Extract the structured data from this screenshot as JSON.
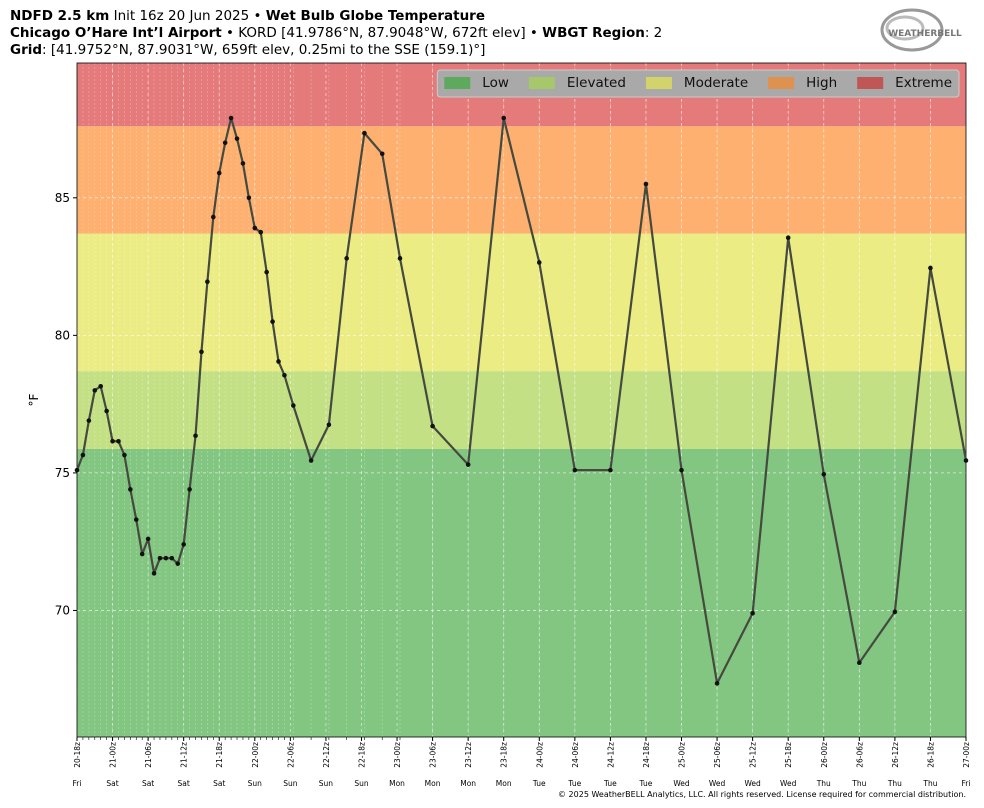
{
  "chart_data": {
    "type": "line",
    "title_lines": [
      [
        {
          "text": "NDFD 2.5 km",
          "bold": true
        },
        {
          "text": " Init 16z 20 Jun 2025 • ",
          "bold": false
        },
        {
          "text": "Wet Bulb Globe Temperature",
          "bold": true
        }
      ],
      [
        {
          "text": "Chicago O’Hare Int’l Airport",
          "bold": true
        },
        {
          "text": " • KORD [41.9786°N, 87.9048°W, 672ft elev] • ",
          "bold": false
        },
        {
          "text": "WBGT Region",
          "bold": true
        },
        {
          "text": ": 2",
          "bold": false
        }
      ],
      [
        {
          "text": "Grid",
          "bold": true
        },
        {
          "text": ": [41.9752°N, 87.9031°W, 659ft elev, 0.25mi to the SSE (159.1)°]",
          "bold": false
        }
      ]
    ],
    "logo": "WEATHERBELL",
    "copyright": "© 2025 WeatherBELL Analytics, LLC. All rights reserved. License required for commercial distribution.",
    "y_label": "°F",
    "ylim": [
      65.4,
      89.9
    ],
    "yticks": [
      70,
      75,
      80,
      85
    ],
    "xlim": [
      0,
      150
    ],
    "xticks": [
      {
        "value": 0,
        "label": "20-18z",
        "day": "Fri"
      },
      {
        "value": 6,
        "label": "21-00z",
        "day": "Sat"
      },
      {
        "value": 12,
        "label": "21-06z",
        "day": "Sat"
      },
      {
        "value": 18,
        "label": "21-12z",
        "day": "Sat"
      },
      {
        "value": 24,
        "label": "21-18z",
        "day": "Sat"
      },
      {
        "value": 30,
        "label": "22-00z",
        "day": "Sun"
      },
      {
        "value": 36,
        "label": "22-06z",
        "day": "Sun"
      },
      {
        "value": 42,
        "label": "22-12z",
        "day": "Sun"
      },
      {
        "value": 48,
        "label": "22-18z",
        "day": "Sun"
      },
      {
        "value": 54,
        "label": "23-00z",
        "day": "Mon"
      },
      {
        "value": 60,
        "label": "23-06z",
        "day": "Mon"
      },
      {
        "value": 66,
        "label": "23-12z",
        "day": "Mon"
      },
      {
        "value": 72,
        "label": "23-18z",
        "day": "Mon"
      },
      {
        "value": 78,
        "label": "24-00z",
        "day": "Tue"
      },
      {
        "value": 84,
        "label": "24-06z",
        "day": "Tue"
      },
      {
        "value": 90,
        "label": "24-12z",
        "day": "Tue"
      },
      {
        "value": 96,
        "label": "24-18z",
        "day": "Tue"
      },
      {
        "value": 102,
        "label": "25-00z",
        "day": "Wed"
      },
      {
        "value": 108,
        "label": "25-06z",
        "day": "Wed"
      },
      {
        "value": 114,
        "label": "25-12z",
        "day": "Wed"
      },
      {
        "value": 120,
        "label": "25-18z",
        "day": "Wed"
      },
      {
        "value": 126,
        "label": "26-00z",
        "day": "Thu"
      },
      {
        "value": 132,
        "label": "26-06z",
        "day": "Thu"
      },
      {
        "value": 138,
        "label": "26-12z",
        "day": "Thu"
      },
      {
        "value": 144,
        "label": "26-18z",
        "day": "Thu"
      },
      {
        "value": 150,
        "label": "27-00z",
        "day": "Fri"
      }
    ],
    "grid": true,
    "legend": "upper right",
    "bands": [
      {
        "name": "Low",
        "min": 65.4,
        "max": 75.87,
        "color": "#82c682",
        "legend_color": "#5ea95e"
      },
      {
        "name": "Elevated",
        "min": 75.87,
        "max": 78.7,
        "color": "#c4e085",
        "legend_color": "#a7c86a"
      },
      {
        "name": "Moderate",
        "min": 78.7,
        "max": 83.7,
        "color": "#ecec85",
        "legend_color": "#d2d36b"
      },
      {
        "name": "High",
        "min": 83.7,
        "max": 87.6,
        "color": "#fdb06f",
        "legend_color": "#df9150"
      },
      {
        "name": "Extreme",
        "min": 87.6,
        "max": 89.9,
        "color": "#e57a7a",
        "legend_color": "#c05656"
      }
    ],
    "series": [
      {
        "color": "#454a3f",
        "x": [
          0,
          1,
          2,
          3,
          4,
          5,
          6,
          7,
          8,
          9,
          10,
          11,
          12,
          13,
          14,
          15,
          16,
          17,
          18,
          19,
          20,
          21,
          22,
          23,
          24,
          25,
          26,
          27,
          28,
          29,
          30,
          31,
          32,
          33,
          34,
          35,
          36.5,
          39.5,
          42.5,
          45.5,
          48.5,
          51.5,
          54.5,
          60,
          66,
          72,
          78,
          84,
          90,
          96,
          102,
          108,
          114,
          120,
          126,
          132,
          138,
          144,
          150
        ],
        "values": [
          75.1,
          75.65,
          76.9,
          78.0,
          78.15,
          77.25,
          76.15,
          76.15,
          75.65,
          74.4,
          73.3,
          72.05,
          72.6,
          71.35,
          71.9,
          71.9,
          71.9,
          71.7,
          72.4,
          74.4,
          76.35,
          79.4,
          81.95,
          84.3,
          85.9,
          87.0,
          87.9,
          87.15,
          86.25,
          85.0,
          83.9,
          83.75,
          82.3,
          80.5,
          79.05,
          78.55,
          77.45,
          75.45,
          76.75,
          82.8,
          87.35,
          86.6,
          82.8,
          76.7,
          75.3,
          87.9,
          82.65,
          75.1,
          75.1,
          85.5,
          75.1,
          67.35,
          69.9,
          83.55,
          74.95,
          68.1,
          69.95,
          82.45,
          75.45
        ]
      }
    ]
  }
}
